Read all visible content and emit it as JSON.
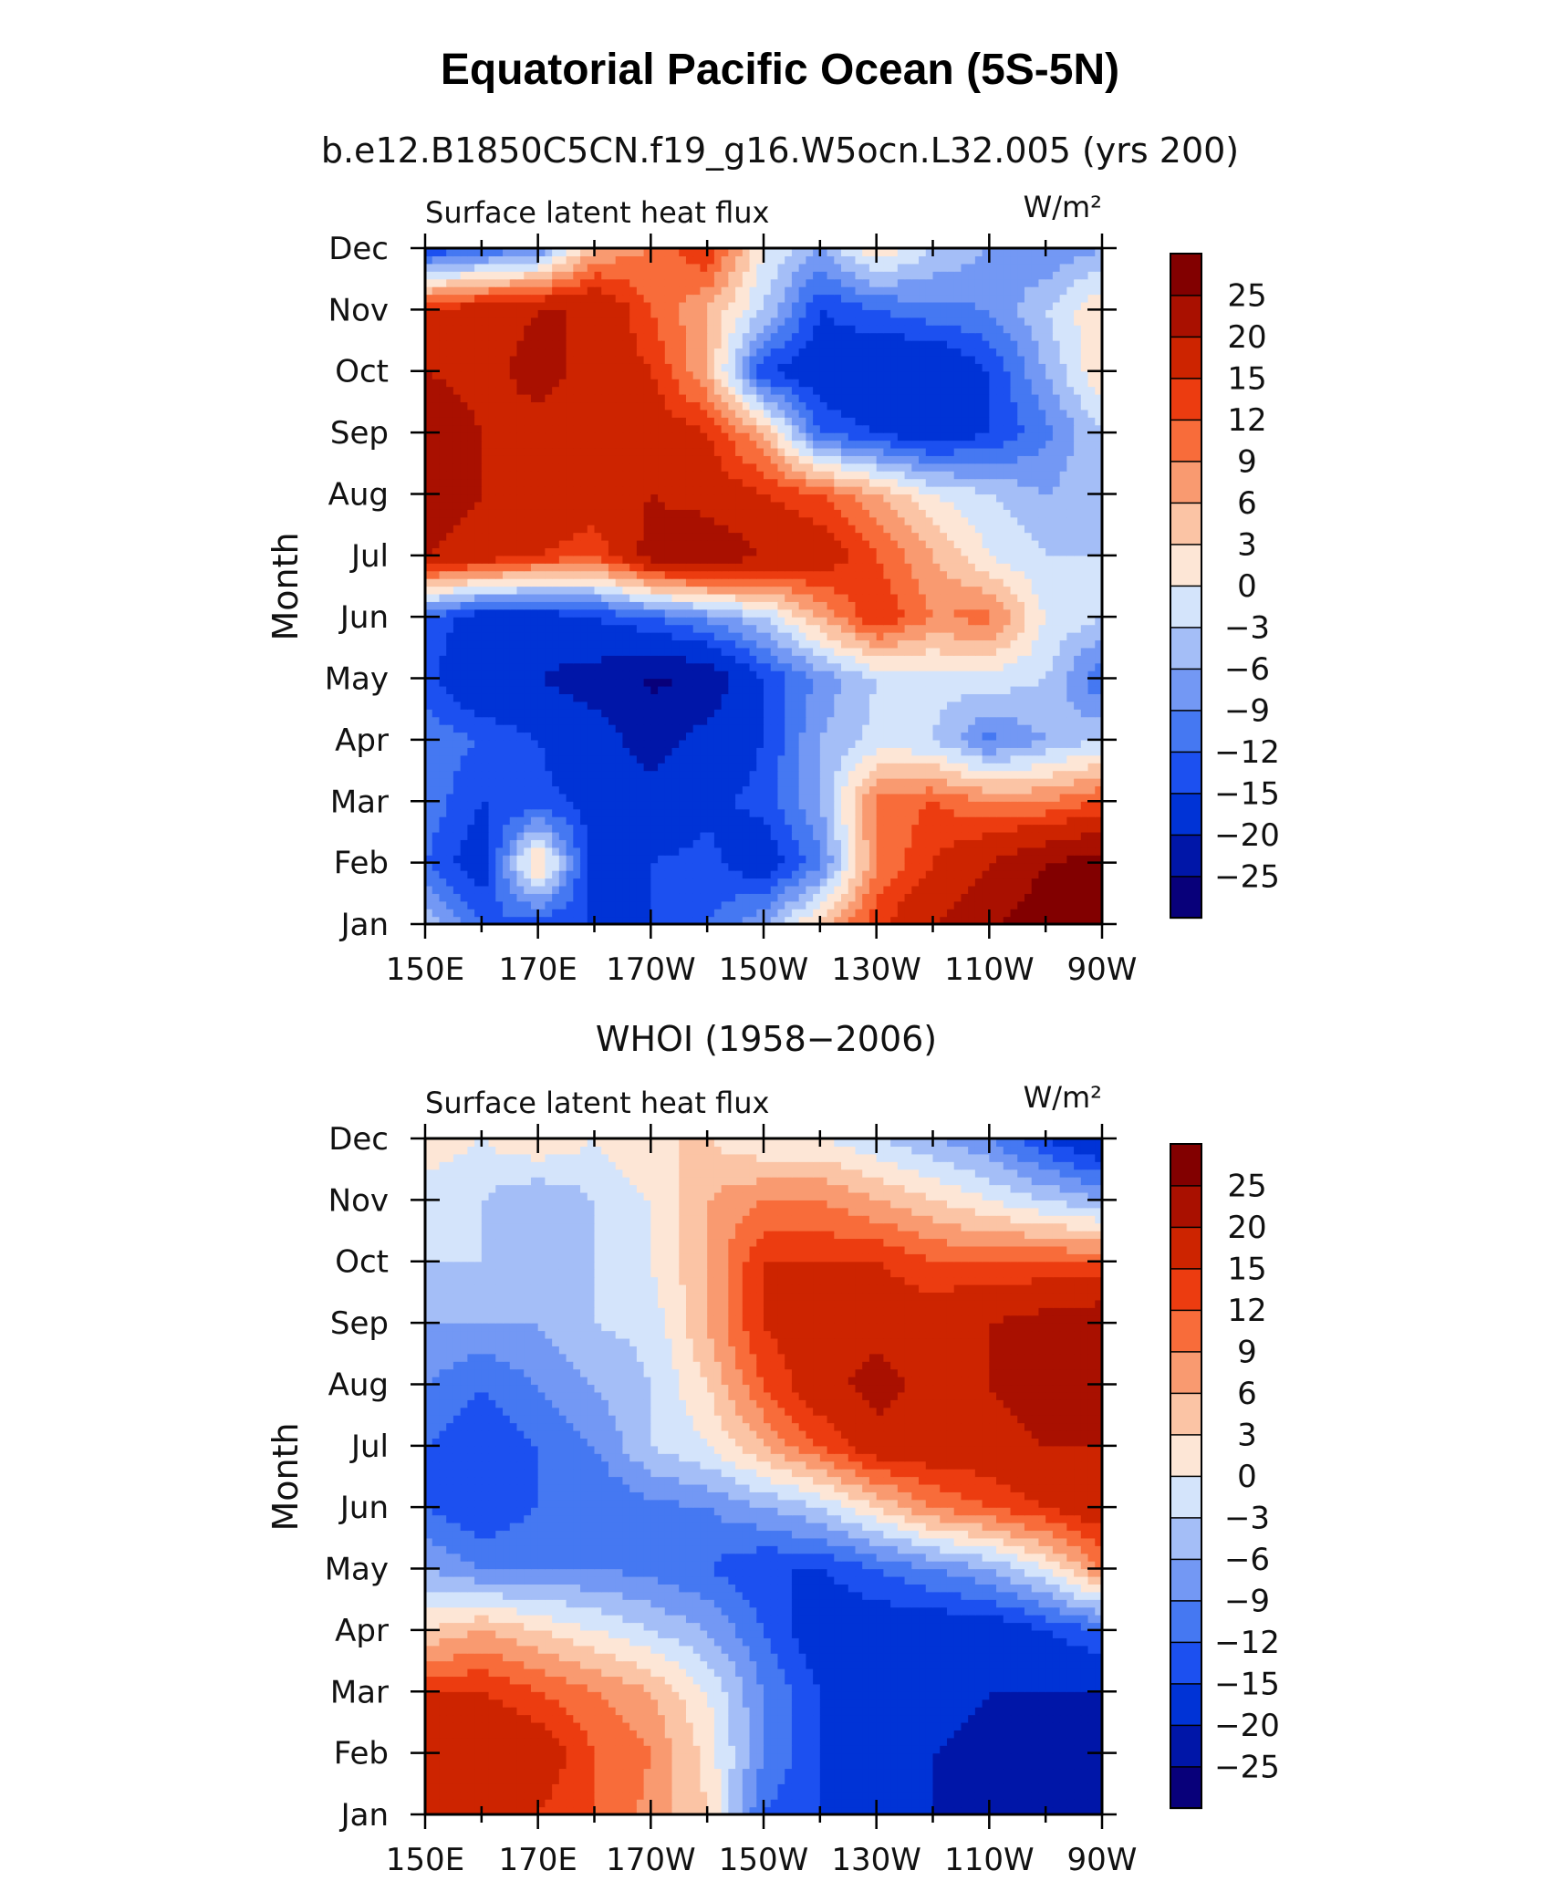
{
  "figure": {
    "title": "Equatorial Pacific Ocean (5S-5N)"
  },
  "colors": {
    "levels": [
      "#08007a",
      "#0016a8",
      "#0033d6",
      "#1c50f0",
      "#4578f2",
      "#7398f4",
      "#a4bef7",
      "#d4e4fb",
      "#fde6d6",
      "#fbc4a5",
      "#f99a70",
      "#f86c3a",
      "#ec3c10",
      "#cd2400",
      "#a91000",
      "#820000"
    ]
  },
  "chart_data": [
    {
      "type": "heatmap",
      "id": "model",
      "subtitle": "b.e12.B1850C5CN.f19_g16.W5ocn.L32.005 (yrs 200)",
      "left_label": "Surface latent heat flux",
      "units_label": "W/m²",
      "xlabel": "",
      "ylabel": "Month",
      "x": [
        150,
        160,
        170,
        180,
        190,
        200,
        210,
        220,
        230,
        240,
        250,
        260,
        270
      ],
      "x_tick_values": [
        150,
        170,
        190,
        210,
        230,
        250,
        270
      ],
      "x_tick_labels": [
        "150E",
        "170E",
        "170W",
        "150W",
        "130W",
        "110W",
        "90W"
      ],
      "xlim": [
        150,
        270
      ],
      "y_tick_labels": [
        "Jan",
        "Feb",
        "Mar",
        "Apr",
        "May",
        "Jun",
        "Jul",
        "Aug",
        "Sep",
        "Oct",
        "Nov",
        "Dec"
      ],
      "ylim": [
        1,
        12
      ],
      "colorbar_labels": [
        "25",
        "20",
        "15",
        "12",
        "9",
        "6",
        "3",
        "0",
        "−3",
        "−6",
        "−9",
        "−12",
        "−15",
        "−20",
        "−25"
      ],
      "values": [
        [
          -3,
          -12,
          -14,
          -15,
          -15,
          -12,
          -6,
          4,
          14,
          20,
          24,
          28,
          28
        ],
        [
          -12,
          -18,
          5,
          -18,
          -15,
          -14,
          -18,
          -10,
          9,
          15,
          20,
          25,
          28
        ],
        [
          -10,
          -15,
          -14,
          -16,
          -18,
          -16,
          -14,
          -6,
          10,
          12,
          9,
          9,
          12
        ],
        [
          -10,
          -12,
          -15,
          -18,
          -22,
          -18,
          -15,
          -6,
          -2,
          -3,
          -10,
          -6,
          -3
        ],
        [
          -14,
          -20,
          -20,
          -22,
          -26,
          -24,
          -15,
          -8,
          -3,
          -2,
          -1,
          -3,
          -12
        ],
        [
          -12,
          -18,
          -18,
          -15,
          -12,
          -8,
          -3,
          6,
          15,
          9,
          10,
          0,
          -3
        ],
        [
          20,
          18,
          15,
          12,
          22,
          24,
          20,
          18,
          12,
          6,
          0,
          -3,
          -3
        ],
        [
          22,
          20,
          20,
          18,
          20,
          18,
          15,
          12,
          6,
          0,
          -3,
          -6,
          -3
        ],
        [
          24,
          20,
          18,
          18,
          18,
          15,
          6,
          -12,
          -15,
          -18,
          -15,
          -10,
          -3
        ],
        [
          20,
          18,
          22,
          18,
          15,
          6,
          -15,
          -18,
          -20,
          -20,
          -15,
          -6,
          3
        ],
        [
          15,
          18,
          20,
          20,
          12,
          6,
          -3,
          -15,
          -12,
          -10,
          -9,
          -3,
          3
        ],
        [
          -15,
          -12,
          -9,
          6,
          9,
          15,
          0,
          -6,
          3,
          -3,
          -6,
          -9,
          -6
        ]
      ]
    },
    {
      "type": "heatmap",
      "id": "whoi",
      "subtitle": "WHOI (1958−2006)",
      "left_label": "Surface latent heat flux",
      "units_label": "W/m²",
      "xlabel": "",
      "ylabel": "Month",
      "x": [
        150,
        160,
        170,
        180,
        190,
        200,
        210,
        220,
        230,
        240,
        250,
        260,
        270
      ],
      "x_tick_values": [
        150,
        170,
        190,
        210,
        230,
        250,
        270
      ],
      "x_tick_labels": [
        "150E",
        "170E",
        "170W",
        "150W",
        "130W",
        "110W",
        "90W"
      ],
      "xlim": [
        150,
        270
      ],
      "y_tick_labels": [
        "Jan",
        "Feb",
        "Mar",
        "Apr",
        "May",
        "Jun",
        "Jul",
        "Aug",
        "Sep",
        "Oct",
        "Nov",
        "Dec"
      ],
      "ylim": [
        1,
        12
      ],
      "colorbar_labels": [
        "25",
        "20",
        "15",
        "12",
        "9",
        "6",
        "3",
        "0",
        "−3",
        "−6",
        "−9",
        "−12",
        "−15",
        "−20",
        "−25"
      ],
      "values": [
        [
          15,
          18,
          15,
          12,
          8,
          3,
          -12,
          -15,
          -20,
          -20,
          -22,
          -24,
          -25
        ],
        [
          18,
          20,
          18,
          12,
          9,
          2,
          -9,
          -15,
          -18,
          -20,
          -22,
          -24,
          -24
        ],
        [
          15,
          15,
          12,
          9,
          6,
          0,
          -9,
          -15,
          -18,
          -18,
          -20,
          -20,
          -20
        ],
        [
          3,
          6,
          3,
          0,
          -3,
          -6,
          -12,
          -18,
          -18,
          -18,
          -18,
          -15,
          -12
        ],
        [
          -6,
          -9,
          -9,
          -9,
          -10,
          -12,
          -15,
          -15,
          -12,
          -9,
          -6,
          0,
          9
        ],
        [
          -12,
          -15,
          -12,
          -12,
          -10,
          -9,
          -6,
          -3,
          3,
          9,
          12,
          15,
          18
        ],
        [
          -12,
          -15,
          -12,
          -9,
          -3,
          0,
          6,
          12,
          18,
          18,
          18,
          20,
          20
        ],
        [
          -9,
          -12,
          -9,
          -6,
          -3,
          3,
          12,
          18,
          22,
          18,
          20,
          22,
          20
        ],
        [
          -6,
          -6,
          -6,
          -3,
          -2,
          6,
          15,
          18,
          18,
          18,
          20,
          22,
          24
        ],
        [
          -3,
          -3,
          -6,
          -3,
          0,
          6,
          15,
          15,
          15,
          12,
          12,
          12,
          12
        ],
        [
          -3,
          -3,
          -6,
          -3,
          0,
          6,
          9,
          9,
          6,
          3,
          0,
          -3,
          -6
        ],
        [
          3,
          0,
          3,
          0,
          3,
          3,
          0,
          0,
          -3,
          -6,
          -9,
          -15,
          -20
        ]
      ]
    }
  ]
}
